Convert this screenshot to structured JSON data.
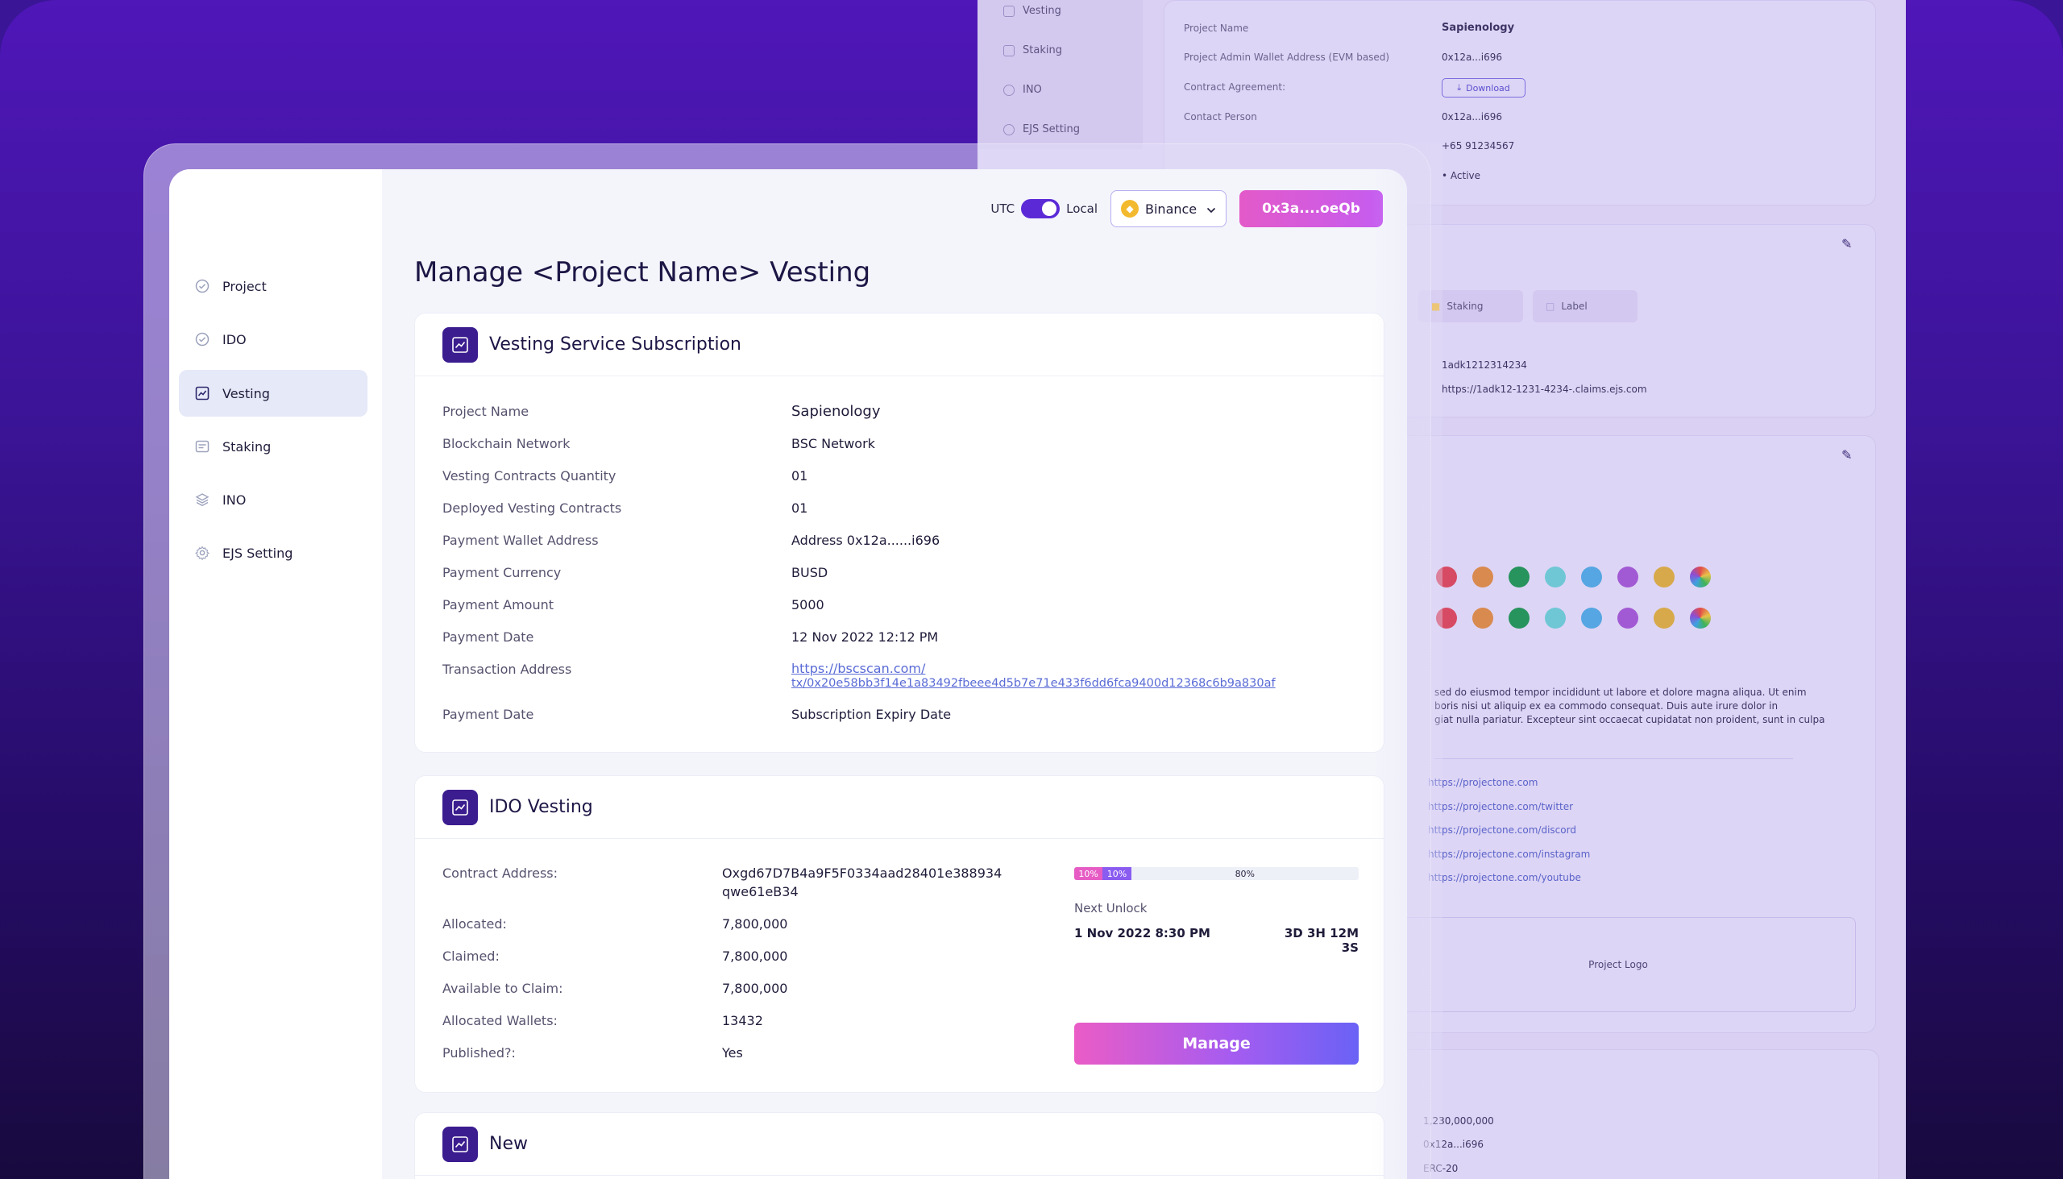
{
  "back": {
    "sidebar": [
      "Vesting",
      "Staking",
      "INO",
      "EJS Setting"
    ],
    "details": [
      {
        "label": "Project Name",
        "value": "Sapienology"
      },
      {
        "label": "Project Admin Wallet Address (EVM based)",
        "value": "0x12a...i696"
      },
      {
        "label": "Contract Agreement:",
        "value": ""
      },
      {
        "label": "Contact Person",
        "value": "0x12a...i696"
      },
      {
        "label": "",
        "value": "+65 91234567"
      },
      {
        "label": "",
        "value": "Active"
      }
    ],
    "download_label": "Download",
    "chips": [
      "Staking",
      "Label"
    ],
    "ids": [
      "1adk1212314234",
      "https://1adk12-1231-4234-.claims.ejs.com"
    ],
    "dot_colors": [
      "#d74a63",
      "#d98a4f",
      "#27935d",
      "#6fc7d6",
      "#55a6e2",
      "#a25ad4",
      "#d7a94a"
    ],
    "description": [
      "sed do eiusmod tempor incididunt ut labore et dolore magna aliqua. Ut enim",
      "boris nisi ut aliquip ex ea commodo consequat. Duis aute irure dolor in",
      "giat nulla pariatur. Excepteur sint occaecat cupidatat non proident, sunt in culpa"
    ],
    "links": [
      "https://projectone.com",
      "https://projectone.com/twitter",
      "https://projectone.com/discord",
      "https://projectone.com/instagram",
      "https://projectone.com/youtube"
    ],
    "logo_label": "Project Logo",
    "bottom_vals": [
      "1,230,000,000",
      "0x12a...i696",
      "ERC-20"
    ]
  },
  "sidebar": {
    "items": [
      {
        "label": "Project"
      },
      {
        "label": "IDO"
      },
      {
        "label": "Vesting"
      },
      {
        "label": "Staking"
      },
      {
        "label": "INO"
      },
      {
        "label": "EJS Setting"
      }
    ]
  },
  "topbar": {
    "utc_label": "UTC",
    "local_label": "Local",
    "network": "Binance",
    "wallet": "0x3a....oeQb"
  },
  "page_title": "Manage <Project Name> Vesting",
  "subscription": {
    "title": "Vesting Service Subscription",
    "rows": [
      {
        "label": "Project Name",
        "value": "Sapienology"
      },
      {
        "label": "Blockchain Network",
        "value": "BSC Network"
      },
      {
        "label": "Vesting Contracts Quantity",
        "value": "01"
      },
      {
        "label": "Deployed Vesting Contracts",
        "value": "01"
      },
      {
        "label": "Payment Wallet Address",
        "value": "Address 0x12a......i696"
      },
      {
        "label": "Payment Currency",
        "value": "BUSD"
      },
      {
        "label": "Payment Amount",
        "value": "5000"
      },
      {
        "label": "Payment Date",
        "value": "12 Nov 2022 12:12 PM"
      },
      {
        "label": "Transaction Address",
        "value_line1": "https://bscscan.com/",
        "value_line2": "tx/0x20e58bb3f14e1a83492fbeee4d5b7e71e433f6dd6fca9400d12368c6b9a830af"
      },
      {
        "label": "Payment Date",
        "value": "Subscription Expiry Date"
      }
    ]
  },
  "ido": {
    "title": "IDO Vesting",
    "contract_label": "Contract Address:",
    "contract_line1": "Oxgd67D7B4a9F5F0334aad28401e388934",
    "contract_line2": "qwe61eB34",
    "rows": [
      {
        "label": "Allocated:",
        "value": "7,800,000"
      },
      {
        "label": "Claimed:",
        "value": "7,800,000"
      },
      {
        "label": "Available to Claim:",
        "value": "7,800,000"
      },
      {
        "label": "Allocated Wallets:",
        "value": "13432"
      },
      {
        "label": "Published?:",
        "value": "Yes"
      }
    ],
    "progress": [
      {
        "label": "10%",
        "percent": 10,
        "color": "#e65cc4"
      },
      {
        "label": "10%",
        "percent": 10,
        "color": "#8a5cf0"
      },
      {
        "label": "80%",
        "percent": 80,
        "color": "#eef0f7"
      }
    ],
    "next_unlock_label": "Next Unlock",
    "next_unlock_date": "1 Nov 2022 8:30 PM",
    "countdown": "3D 3H 12M 3S",
    "manage_label": "Manage"
  },
  "new_card": {
    "title": "New"
  }
}
